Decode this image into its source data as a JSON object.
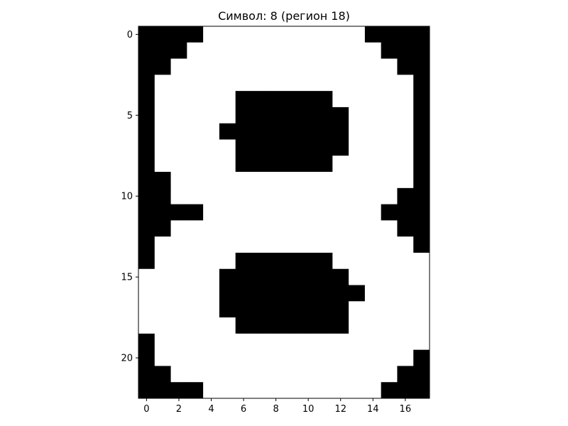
{
  "chart_data": {
    "type": "heatmap",
    "title": "Символ: 8 (регион 18)",
    "xlabel": "",
    "ylabel": "",
    "colormap": {
      "0": "#000000",
      "1": "#ffffff"
    },
    "x_ticks": [
      0,
      2,
      4,
      6,
      8,
      10,
      12,
      14,
      16
    ],
    "y_ticks": [
      0,
      5,
      10,
      15,
      20
    ],
    "xlim": [
      -0.5,
      17.5
    ],
    "ylim": [
      22.5,
      -0.5
    ],
    "grid": false,
    "legend": "none",
    "rows": 23,
    "cols": 18,
    "values": [
      [
        0,
        0,
        0,
        0,
        1,
        1,
        1,
        1,
        1,
        1,
        1,
        1,
        1,
        1,
        0,
        0,
        0,
        0
      ],
      [
        0,
        0,
        0,
        1,
        1,
        1,
        1,
        1,
        1,
        1,
        1,
        1,
        1,
        1,
        1,
        0,
        0,
        0
      ],
      [
        0,
        0,
        1,
        1,
        1,
        1,
        1,
        1,
        1,
        1,
        1,
        1,
        1,
        1,
        1,
        1,
        0,
        0
      ],
      [
        0,
        1,
        1,
        1,
        1,
        1,
        1,
        1,
        1,
        1,
        1,
        1,
        1,
        1,
        1,
        1,
        1,
        0
      ],
      [
        0,
        1,
        1,
        1,
        1,
        1,
        0,
        0,
        0,
        0,
        0,
        0,
        1,
        1,
        1,
        1,
        1,
        0
      ],
      [
        0,
        1,
        1,
        1,
        1,
        1,
        0,
        0,
        0,
        0,
        0,
        0,
        0,
        1,
        1,
        1,
        1,
        0
      ],
      [
        0,
        1,
        1,
        1,
        1,
        0,
        0,
        0,
        0,
        0,
        0,
        0,
        0,
        1,
        1,
        1,
        1,
        0
      ],
      [
        0,
        1,
        1,
        1,
        1,
        1,
        0,
        0,
        0,
        0,
        0,
        0,
        0,
        1,
        1,
        1,
        1,
        0
      ],
      [
        0,
        1,
        1,
        1,
        1,
        1,
        0,
        0,
        0,
        0,
        0,
        0,
        1,
        1,
        1,
        1,
        1,
        0
      ],
      [
        0,
        0,
        1,
        1,
        1,
        1,
        1,
        1,
        1,
        1,
        1,
        1,
        1,
        1,
        1,
        1,
        1,
        0
      ],
      [
        0,
        0,
        1,
        1,
        1,
        1,
        1,
        1,
        1,
        1,
        1,
        1,
        1,
        1,
        1,
        1,
        0,
        0
      ],
      [
        0,
        0,
        0,
        0,
        1,
        1,
        1,
        1,
        1,
        1,
        1,
        1,
        1,
        1,
        1,
        0,
        0,
        0
      ],
      [
        0,
        0,
        1,
        1,
        1,
        1,
        1,
        1,
        1,
        1,
        1,
        1,
        1,
        1,
        1,
        1,
        0,
        0
      ],
      [
        0,
        1,
        1,
        1,
        1,
        1,
        1,
        1,
        1,
        1,
        1,
        1,
        1,
        1,
        1,
        1,
        1,
        0
      ],
      [
        0,
        1,
        1,
        1,
        1,
        1,
        0,
        0,
        0,
        0,
        0,
        0,
        1,
        1,
        1,
        1,
        1,
        1
      ],
      [
        1,
        1,
        1,
        1,
        1,
        0,
        0,
        0,
        0,
        0,
        0,
        0,
        0,
        1,
        1,
        1,
        1,
        1
      ],
      [
        1,
        1,
        1,
        1,
        1,
        0,
        0,
        0,
        0,
        0,
        0,
        0,
        0,
        0,
        1,
        1,
        1,
        1
      ],
      [
        1,
        1,
        1,
        1,
        1,
        0,
        0,
        0,
        0,
        0,
        0,
        0,
        0,
        1,
        1,
        1,
        1,
        1
      ],
      [
        1,
        1,
        1,
        1,
        1,
        1,
        0,
        0,
        0,
        0,
        0,
        0,
        0,
        1,
        1,
        1,
        1,
        1
      ],
      [
        0,
        1,
        1,
        1,
        1,
        1,
        1,
        1,
        1,
        1,
        1,
        1,
        1,
        1,
        1,
        1,
        1,
        1
      ],
      [
        0,
        1,
        1,
        1,
        1,
        1,
        1,
        1,
        1,
        1,
        1,
        1,
        1,
        1,
        1,
        1,
        1,
        0
      ],
      [
        0,
        0,
        1,
        1,
        1,
        1,
        1,
        1,
        1,
        1,
        1,
        1,
        1,
        1,
        1,
        1,
        0,
        0
      ],
      [
        0,
        0,
        0,
        0,
        1,
        1,
        1,
        1,
        1,
        1,
        1,
        1,
        1,
        1,
        1,
        0,
        0,
        0
      ]
    ]
  }
}
